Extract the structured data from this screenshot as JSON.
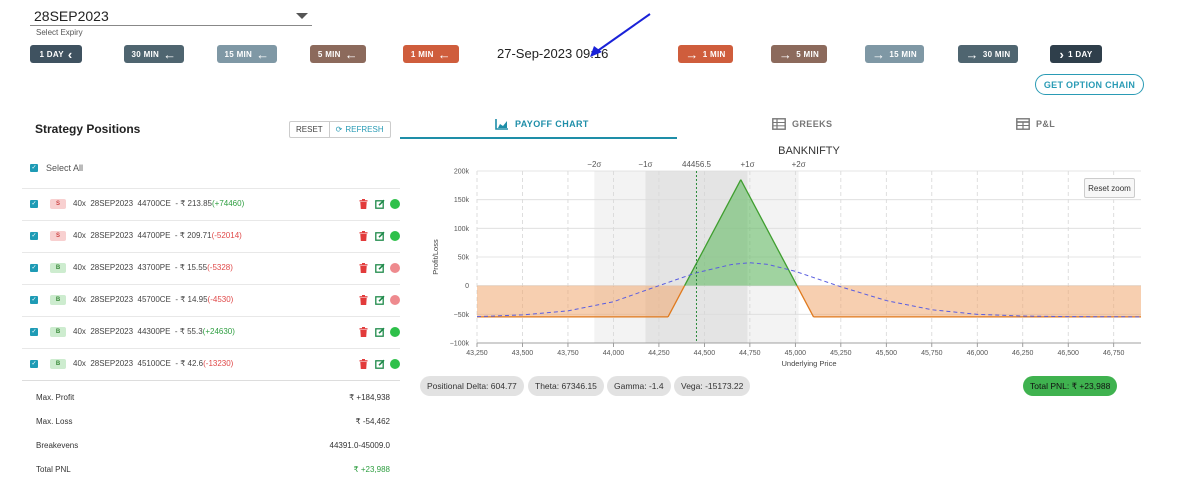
{
  "expiry": {
    "value": "28SEP2023",
    "helper": "Select Expiry"
  },
  "nav_back": [
    {
      "label": "1 DAY",
      "color": "#3f5260"
    },
    {
      "label": "30 MIN",
      "color": "#4f6570"
    },
    {
      "label": "15 MIN",
      "color": "#7f98a5"
    },
    {
      "label": "5 MIN",
      "color": "#8c6a5c"
    },
    {
      "label": "1 MIN",
      "color": "#cf5d3c"
    }
  ],
  "current_time": "27-Sep-2023 09:16",
  "nav_forward": [
    {
      "label": "1 MIN",
      "color": "#cf5d3c"
    },
    {
      "label": "5 MIN",
      "color": "#8c6a5c"
    },
    {
      "label": "15 MIN",
      "color": "#7f98a5"
    },
    {
      "label": "30 MIN",
      "color": "#4f6570"
    },
    {
      "label": "1 DAY",
      "color": "#2f3f4b"
    }
  ],
  "option_chain_label": "GET OPTION CHAIN",
  "strategy": {
    "title": "Strategy Positions",
    "reset_label": "RESET",
    "refresh_label": "REFRESH",
    "select_all_label": "Select All"
  },
  "positions": [
    {
      "side": "S",
      "qty": "40x",
      "expiry": "28SEP2023",
      "instrument": "44700CE",
      "price": "- ₹ 213.85",
      "change": "(+74460)",
      "change_sign": "pos",
      "status": "green"
    },
    {
      "side": "S",
      "qty": "40x",
      "expiry": "28SEP2023",
      "instrument": "44700PE",
      "price": "- ₹ 209.71",
      "change": "(-52014)",
      "change_sign": "neg",
      "status": "green"
    },
    {
      "side": "B",
      "qty": "40x",
      "expiry": "28SEP2023",
      "instrument": "43700PE",
      "price": "- ₹ 15.55",
      "change": "(-5328)",
      "change_sign": "neg",
      "status": "red"
    },
    {
      "side": "B",
      "qty": "40x",
      "expiry": "28SEP2023",
      "instrument": "45700CE",
      "price": "- ₹ 14.95",
      "change": "(-4530)",
      "change_sign": "neg",
      "status": "red"
    },
    {
      "side": "B",
      "qty": "40x",
      "expiry": "28SEP2023",
      "instrument": "44300PE",
      "price": "- ₹ 55.3",
      "change": "(+24630)",
      "change_sign": "pos",
      "status": "green"
    },
    {
      "side": "B",
      "qty": "40x",
      "expiry": "28SEP2023",
      "instrument": "45100CE",
      "price": "- ₹ 42.6",
      "change": "(-13230)",
      "change_sign": "neg",
      "status": "green"
    }
  ],
  "summary": {
    "max_profit_label": "Max. Profit",
    "max_profit": "₹ +184,938",
    "max_loss_label": "Max. Loss",
    "max_loss": "₹ -54,462",
    "breakevens_label": "Breakevens",
    "breakevens": "44391.0-45009.0",
    "total_pnl_label": "Total PNL",
    "total_pnl": "₹ +23,988"
  },
  "tabs": [
    {
      "label": "PAYOFF CHART",
      "icon": "area-chart-icon",
      "active": true
    },
    {
      "label": "GREEKS",
      "icon": "table-icon",
      "active": false
    },
    {
      "label": "P&L",
      "icon": "grid-table-icon",
      "active": false
    }
  ],
  "reset_zoom_label": "Reset zoom",
  "greeks": {
    "delta": "Positional Delta: 604.77",
    "theta": "Theta: 67346.15",
    "gamma": "Gamma: -1.4",
    "vega": "Vega: -15173.22",
    "total_pnl": "Total PNL: ₹ +23,988"
  },
  "chart_data": {
    "type": "line",
    "title": "BANKNIFTY",
    "xlabel": "Underlying Price",
    "ylabel": "Profit/Loss",
    "xlim": [
      43250,
      46900
    ],
    "ylim": [
      -100000,
      200000
    ],
    "x_ticks": [
      43250,
      43500,
      43750,
      44000,
      44250,
      44500,
      44750,
      45000,
      45250,
      45500,
      45750,
      46000,
      46250,
      46500,
      46750
    ],
    "x_tick_labels": [
      "43,250",
      "43,500",
      "43,750",
      "44,000",
      "44,250",
      "44,500",
      "44,750",
      "45,000",
      "45,250",
      "45,500",
      "45,750",
      "46,000",
      "46,250",
      "46,500",
      "46,750"
    ],
    "y_ticks": [
      -100000,
      -50000,
      0,
      50000,
      100000,
      150000,
      200000
    ],
    "y_tick_labels": [
      "−100k",
      "−50k",
      "0",
      "50k",
      "100k",
      "150k",
      "200k"
    ],
    "spot": 44456.5,
    "spot_label": "44456.5",
    "sigma_bands": [
      {
        "label": "−2σ",
        "value": 43895
      },
      {
        "label": "−1σ",
        "value": 44176
      },
      {
        "label": "+1σ",
        "value": 44737
      },
      {
        "label": "+2σ",
        "value": 45018
      }
    ],
    "series": [
      {
        "style": "payoff",
        "x": [
          43250,
          44300,
          44700,
          45100,
          46900
        ],
        "y": [
          -54462,
          -54462,
          184938,
          -54462,
          -54462
        ]
      },
      {
        "style": "expiry-estimate",
        "x": [
          43250,
          43500,
          43750,
          44000,
          44250,
          44450,
          44650,
          44750,
          44850,
          45000,
          45250,
          45500,
          45750,
          46000,
          46250,
          46500,
          46900
        ],
        "y": [
          -54000,
          -51000,
          -44000,
          -28000,
          0,
          22000,
          37000,
          40000,
          37000,
          25000,
          -2000,
          -26000,
          -42000,
          -50000,
          -53000,
          -54000,
          -54400
        ]
      }
    ],
    "grid": true,
    "colors": {
      "profit": "#5bb85b",
      "loss": "#f0a870",
      "estimate": "#5a5ee0",
      "spot": "#2a8a3a"
    }
  }
}
